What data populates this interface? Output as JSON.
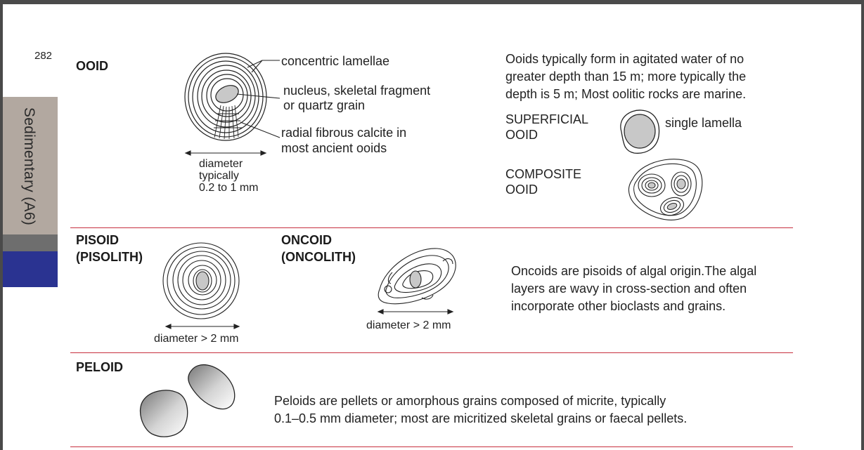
{
  "page_number": "282",
  "side_tab": {
    "label": "Sedimentary (A6)"
  },
  "colors": {
    "divider": "#c7303f",
    "tab_grey": "#b2a8a0",
    "tab_dark": "#6e6e6e",
    "tab_blue": "#2a3391",
    "grain_fill": "#c8c8c8"
  },
  "ooid": {
    "heading": "OOID",
    "labels": {
      "lamellae": "concentric lamellae",
      "nucleus": "nucleus, skeletal fragment\nor quartz grain",
      "radial": "radial fibrous calcite in\nmost ancient ooids",
      "diameter": "diameter\ntypically\n0.2 to 1 mm"
    },
    "description": "Ooids typically form in agitated water of no\ngreater depth than 15 m; more typically the\ndepth is 5 m; Most oolitic rocks are marine.",
    "superficial": {
      "label": "SUPERFICIAL\nOOID",
      "note": "single lamella"
    },
    "composite": {
      "label": "COMPOSITE\nOOID"
    }
  },
  "pisoid": {
    "heading": "PISOID\n(PISOLITH)",
    "diameter": "diameter > 2 mm"
  },
  "oncoid": {
    "heading": "ONCOID\n(ONCOLITH)",
    "diameter": "diameter > 2 mm",
    "description": "Oncoids are pisoids of algal origin.The algal\nlayers are wavy in cross-section and often\nincorporate other bioclasts and grains."
  },
  "peloid": {
    "heading": "PELOID",
    "description": "Peloids are pellets or amorphous grains composed of micrite, typically\n0.1–0.5 mm diameter; most are micritized skeletal grains or faecal pellets."
  }
}
